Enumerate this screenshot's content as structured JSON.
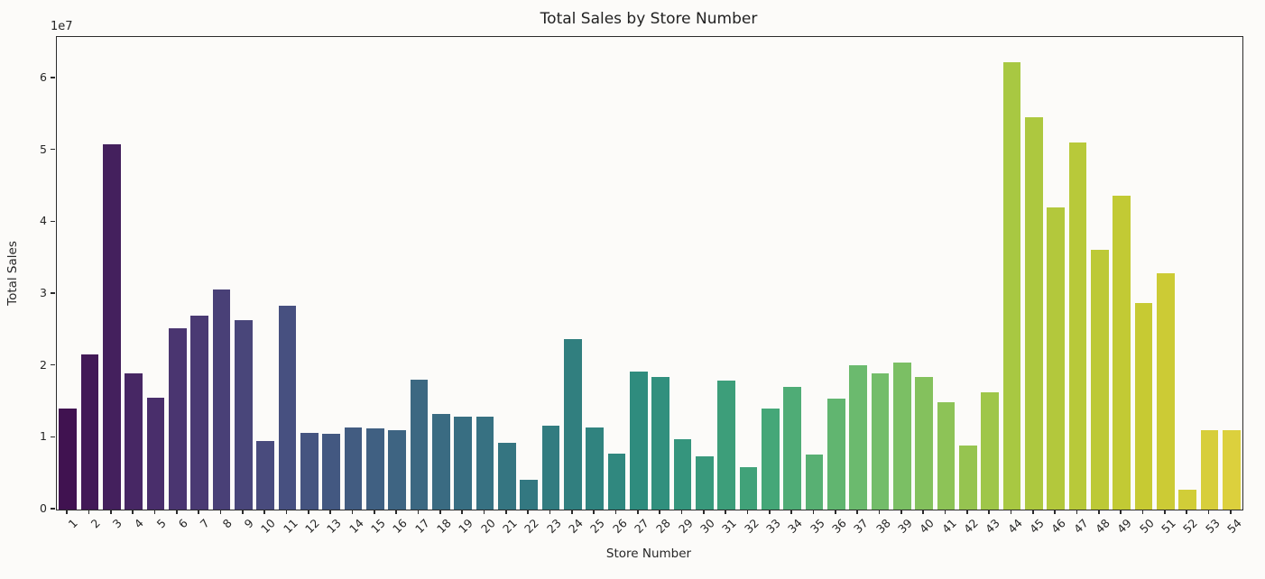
{
  "chart_data": {
    "type": "bar",
    "title": "Total Sales by Store Number",
    "xlabel": "Store Number",
    "ylabel": "Total Sales",
    "y_offset_text": "1e7",
    "categories": [
      "1",
      "2",
      "3",
      "4",
      "5",
      "6",
      "7",
      "8",
      "9",
      "10",
      "11",
      "12",
      "13",
      "14",
      "15",
      "16",
      "17",
      "18",
      "19",
      "20",
      "21",
      "22",
      "23",
      "24",
      "25",
      "26",
      "27",
      "28",
      "29",
      "30",
      "31",
      "32",
      "33",
      "34",
      "35",
      "36",
      "37",
      "38",
      "39",
      "40",
      "41",
      "42",
      "43",
      "44",
      "45",
      "46",
      "47",
      "48",
      "49",
      "50",
      "51",
      "52",
      "53",
      "54"
    ],
    "values": [
      14100000,
      21600000,
      50800000,
      19000000,
      15600000,
      25200000,
      27000000,
      30600000,
      26400000,
      9600000,
      28400000,
      10700000,
      10600000,
      11400000,
      11300000,
      11000000,
      18100000,
      13300000,
      12900000,
      12900000,
      9300000,
      4100000,
      11700000,
      23700000,
      11400000,
      7800000,
      19200000,
      18400000,
      9800000,
      7400000,
      17900000,
      5900000,
      14100000,
      17100000,
      7600000,
      15400000,
      20100000,
      19000000,
      20400000,
      18400000,
      14900000,
      8900000,
      16300000,
      62200000,
      54600000,
      42000000,
      51100000,
      36100000,
      43700000,
      28700000,
      32900000,
      2700000,
      11100000,
      11000000
    ],
    "ylim": [
      0,
      65750000
    ],
    "yticks": [
      0,
      10000000,
      20000000,
      30000000,
      40000000,
      50000000,
      60000000
    ],
    "ytick_labels": [
      "0",
      "1",
      "2",
      "3",
      "4",
      "5",
      "6"
    ],
    "grid": false,
    "legend": null,
    "palette": {
      "name": "viridis-desaturated",
      "desaturation": 0.75,
      "anchors": [
        "#440154",
        "#482878",
        "#3e4989",
        "#31688e",
        "#26828e",
        "#1f9e89",
        "#35b779",
        "#6dcd59",
        "#b4de2c",
        "#dce319",
        "#fde725"
      ]
    },
    "spine_color": "#2b2b2b",
    "background_color": "#fcfbf9"
  }
}
